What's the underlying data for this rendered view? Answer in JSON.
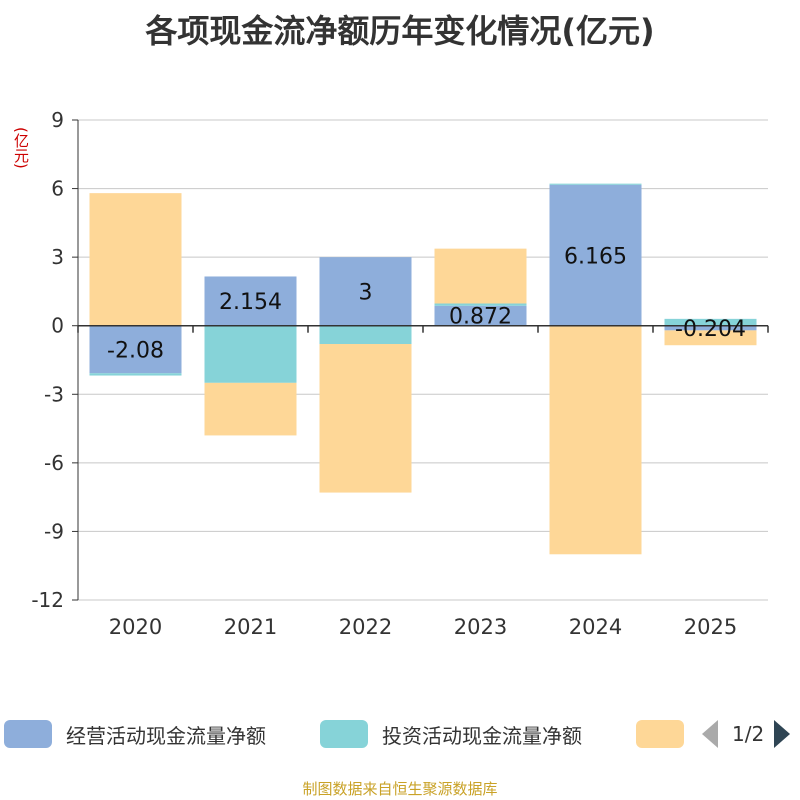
{
  "title": "各项现金流净额历年变化情况(亿元)",
  "unit": "(亿元)",
  "source": "制图数据来自恒生聚源数据库",
  "legend_pager": "1/2",
  "colors": {
    "operating": "#8eaedb",
    "investing": "#86d3d8",
    "financing": "#fed797",
    "grid": "#c8c8c8",
    "axis": "#333333"
  },
  "chart_data": {
    "type": "bar",
    "stacked": true,
    "categories": [
      "2020",
      "2021",
      "2022",
      "2023",
      "2024",
      "2025"
    ],
    "ylim": [
      -12,
      9
    ],
    "yticks": [
      9,
      6,
      3,
      0,
      -3,
      -6,
      -9,
      -12
    ],
    "grid": true,
    "legend_position": "bottom",
    "series": [
      {
        "name": "经营活动现金流量净额",
        "color_key": "operating",
        "values": [
          -2.08,
          2.154,
          3,
          0.872,
          6.165,
          -0.204
        ],
        "labels": [
          "-2.08",
          "2.154",
          "3",
          "0.872",
          "6.165",
          "-0.204"
        ]
      },
      {
        "name": "投资活动现金流量净额",
        "color_key": "investing",
        "values": [
          -0.1,
          -2.5,
          -0.8,
          0.1,
          0.05,
          0.3
        ],
        "labels": []
      },
      {
        "name": "",
        "color_key": "financing",
        "values": [
          5.8,
          -2.3,
          -6.5,
          2.4,
          -10.0,
          -0.65
        ],
        "labels": []
      }
    ]
  }
}
